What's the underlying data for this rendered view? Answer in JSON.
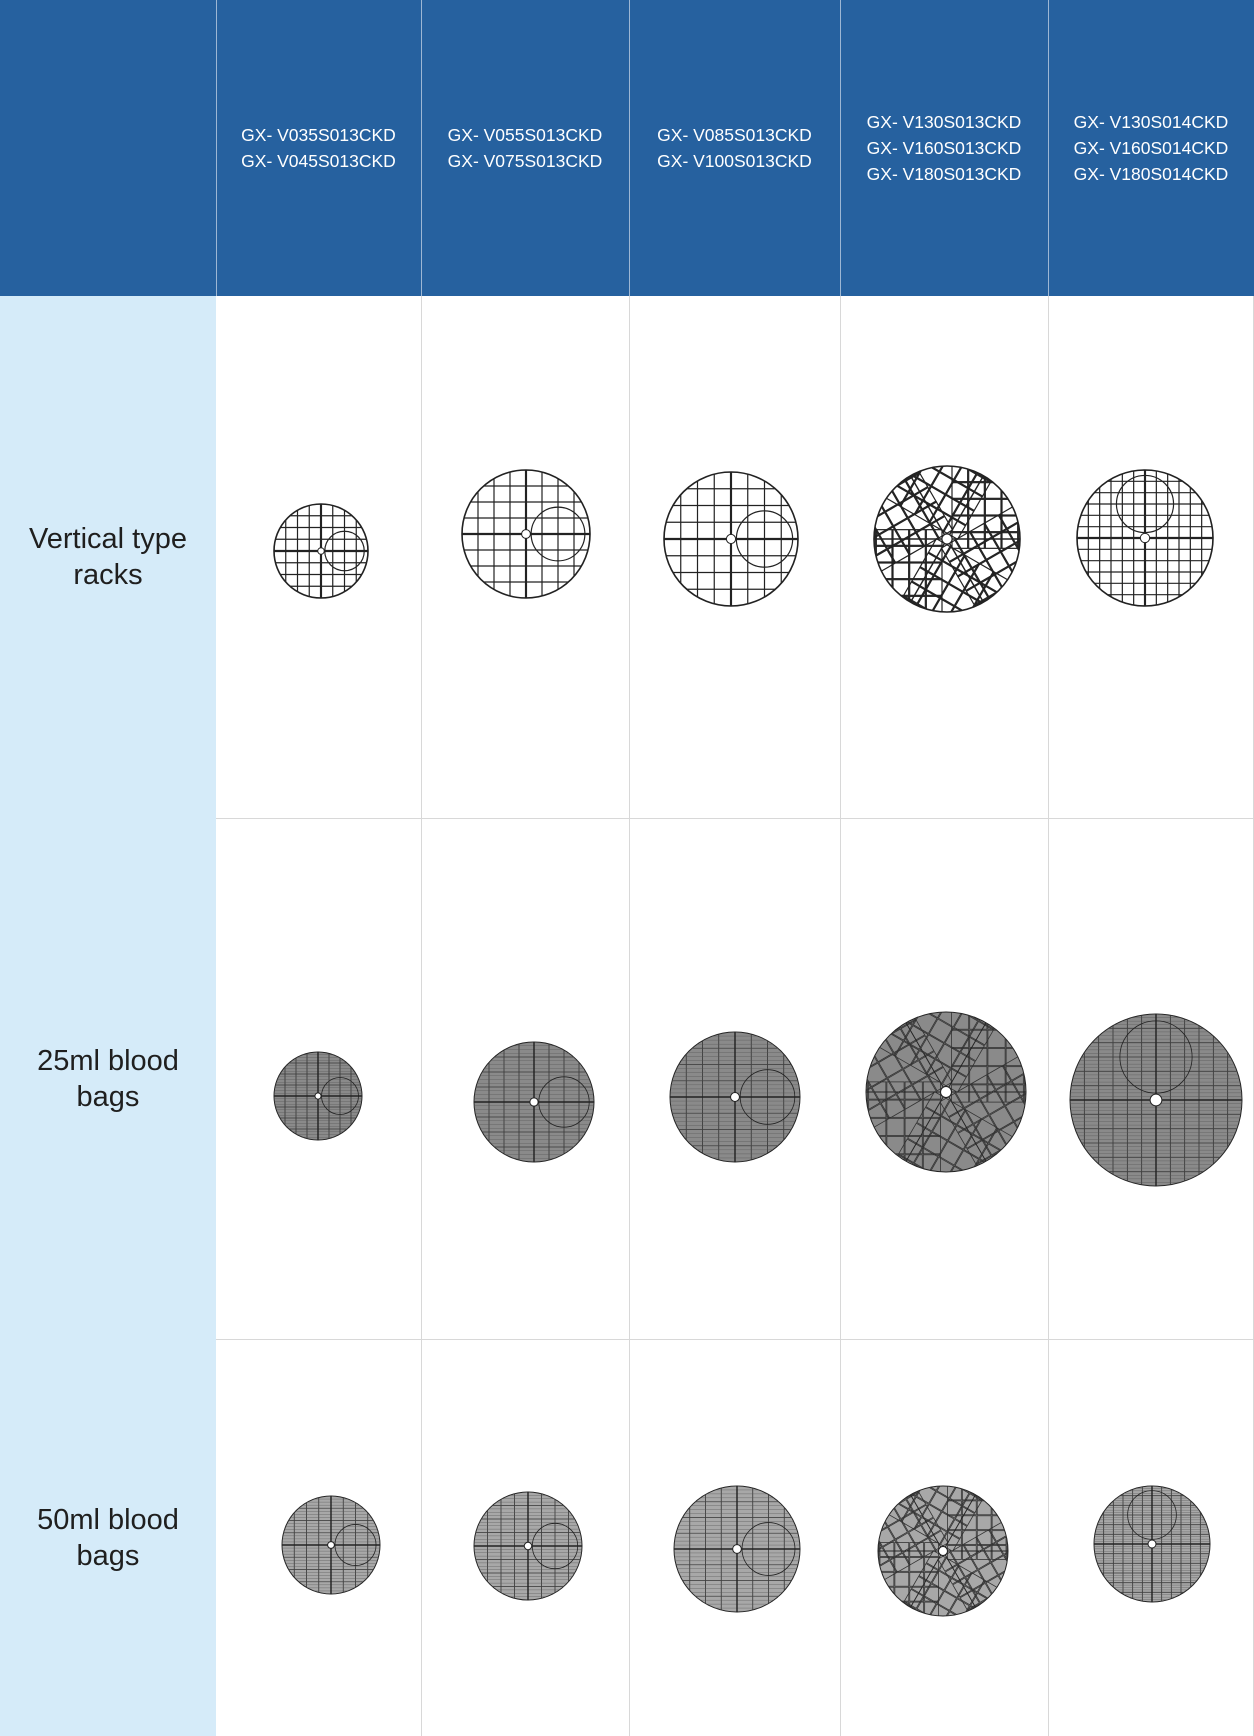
{
  "header": {
    "corner": "",
    "columns": [
      {
        "models": [
          "GX- V035S013CKD",
          "GX- V045S013CKD"
        ]
      },
      {
        "models": [
          "GX- V055S013CKD",
          "GX- V075S013CKD"
        ]
      },
      {
        "models": [
          "GX- V085S013CKD",
          "GX- V100S013CKD"
        ]
      },
      {
        "models": [
          "GX- V130S013CKD",
          "GX- V160S013CKD",
          "GX- V180S013CKD"
        ]
      },
      {
        "models": [
          "GX- V130S014CKD",
          "GX- V160S014CKD",
          "GX- V180S014CKD"
        ]
      }
    ]
  },
  "rows": [
    {
      "label_line1": "Vertical type",
      "label_line2": "racks",
      "style": "outline"
    },
    {
      "label_line1": "25ml blood",
      "label_line2": "bags",
      "style": "filled"
    },
    {
      "label_line1": "50ml blood",
      "label_line2": "bags",
      "style": "filled-light"
    }
  ],
  "colors": {
    "header_bg": "#26619f",
    "header_text": "#ffffff",
    "label_bg": "#d5ebf9",
    "grid_line": "#d8d8d8"
  }
}
